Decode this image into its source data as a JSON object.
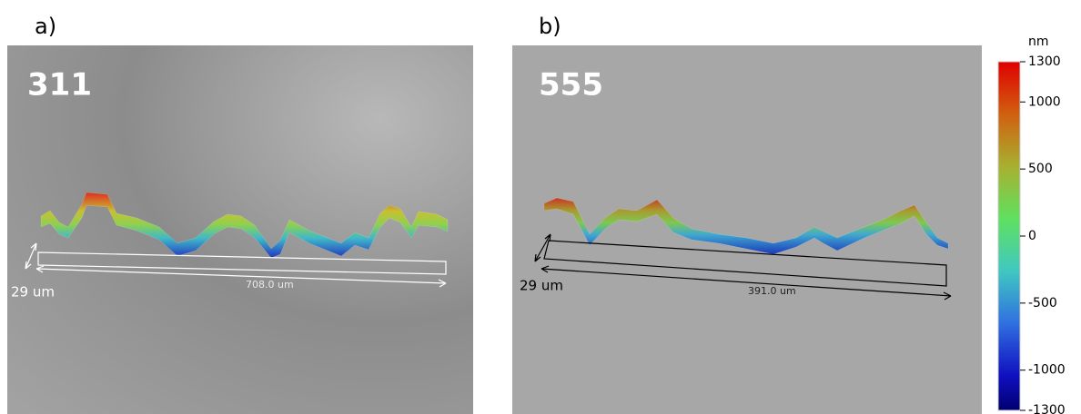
{
  "panels": [
    {
      "label": "a)",
      "sample": "311",
      "width_label": "29 um",
      "length_label": "708.0 um"
    },
    {
      "label": "b)",
      "sample": "555",
      "width_label": "29 um",
      "length_label": "391.0 um"
    }
  ],
  "colorbar": {
    "unit": "nm",
    "range": [
      -1300,
      1300
    ],
    "ticks": [
      1300,
      1000,
      500,
      0,
      -500,
      -1000,
      -1300
    ]
  }
}
